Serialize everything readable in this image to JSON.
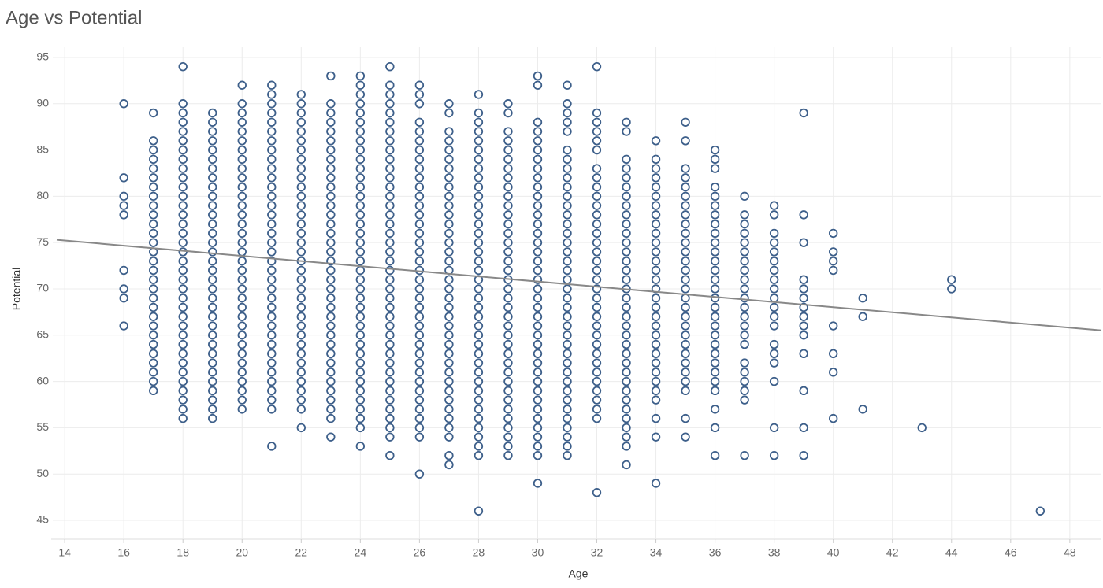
{
  "chart_data": {
    "type": "scatter",
    "title": "Age vs Potential",
    "x_label": "Age",
    "y_label": "Potential",
    "color": "#3d5f8a",
    "trend_color": "#888888",
    "trend": {
      "slope": -0.277,
      "intercept": 79.1
    },
    "xlim": [
      13.73,
      49.07
    ],
    "ylim": [
      42.96,
      96.1
    ],
    "xticks": [
      14,
      16,
      18,
      20,
      22,
      24,
      26,
      28,
      30,
      32,
      34,
      36,
      38,
      40,
      42,
      44,
      46,
      48
    ],
    "yticks": [
      45,
      50,
      55,
      60,
      65,
      70,
      75,
      80,
      85,
      90,
      95
    ],
    "grid": true,
    "groups": [
      {
        "x": 16,
        "values": [
          90,
          82,
          80,
          79,
          78,
          72,
          70,
          69,
          66
        ]
      },
      {
        "x": 17,
        "values": [
          89,
          86,
          85,
          84,
          83,
          82,
          81,
          80,
          79,
          78,
          77,
          76,
          75,
          74,
          73,
          72,
          71,
          70,
          69,
          68,
          67,
          66,
          65,
          64,
          63,
          62,
          61,
          60,
          59
        ]
      },
      {
        "x": 18,
        "values": [
          94,
          90,
          89,
          88,
          87,
          86,
          85,
          84,
          83,
          82,
          81,
          80,
          79,
          78,
          77,
          76,
          75,
          74,
          73,
          72,
          71,
          70,
          69,
          68,
          67,
          66,
          65,
          64,
          63,
          62,
          61,
          60,
          59,
          58,
          57,
          56
        ]
      },
      {
        "x": 19,
        "values": [
          89,
          88,
          87,
          86,
          85,
          84,
          83,
          82,
          81,
          80,
          79,
          78,
          77,
          76,
          75,
          74,
          73,
          72,
          71,
          70,
          69,
          68,
          67,
          66,
          65,
          64,
          63,
          62,
          61,
          60,
          59,
          58,
          57,
          56
        ]
      },
      {
        "x": 20,
        "values": [
          92,
          90,
          89,
          88,
          87,
          86,
          85,
          84,
          83,
          82,
          81,
          80,
          79,
          78,
          77,
          76,
          75,
          74,
          73,
          72,
          71,
          70,
          69,
          68,
          67,
          66,
          65,
          64,
          63,
          62,
          61,
          60,
          59,
          58,
          57
        ]
      },
      {
        "x": 21,
        "values": [
          92,
          91,
          90,
          89,
          88,
          87,
          86,
          85,
          84,
          83,
          82,
          81,
          80,
          79,
          78,
          77,
          76,
          75,
          74,
          73,
          72,
          71,
          70,
          69,
          68,
          67,
          66,
          65,
          64,
          63,
          62,
          61,
          60,
          59,
          58,
          57,
          53
        ]
      },
      {
        "x": 22,
        "values": [
          91,
          90,
          89,
          88,
          87,
          86,
          85,
          84,
          83,
          82,
          81,
          80,
          79,
          78,
          77,
          76,
          75,
          74,
          73,
          72,
          71,
          70,
          69,
          68,
          67,
          66,
          65,
          64,
          63,
          62,
          61,
          60,
          59,
          58,
          57,
          55
        ]
      },
      {
        "x": 23,
        "values": [
          93,
          90,
          89,
          88,
          87,
          86,
          85,
          84,
          83,
          82,
          81,
          80,
          79,
          78,
          77,
          76,
          75,
          74,
          73,
          72,
          71,
          70,
          69,
          68,
          67,
          66,
          65,
          64,
          63,
          62,
          61,
          60,
          59,
          58,
          57,
          56,
          54
        ]
      },
      {
        "x": 24,
        "values": [
          93,
          92,
          91,
          90,
          89,
          88,
          87,
          86,
          85,
          84,
          83,
          82,
          81,
          80,
          79,
          78,
          77,
          76,
          75,
          74,
          73,
          72,
          71,
          70,
          69,
          68,
          67,
          66,
          65,
          64,
          63,
          62,
          61,
          60,
          59,
          58,
          57,
          56,
          55,
          53
        ]
      },
      {
        "x": 25,
        "values": [
          94,
          92,
          91,
          90,
          89,
          88,
          87,
          86,
          85,
          84,
          83,
          82,
          81,
          80,
          79,
          78,
          77,
          76,
          75,
          74,
          73,
          72,
          71,
          70,
          69,
          68,
          67,
          66,
          65,
          64,
          63,
          62,
          61,
          60,
          59,
          58,
          57,
          56,
          55,
          54,
          52
        ]
      },
      {
        "x": 26,
        "values": [
          92,
          91,
          90,
          88,
          87,
          86,
          85,
          84,
          83,
          82,
          81,
          80,
          79,
          78,
          77,
          76,
          75,
          74,
          73,
          72,
          71,
          70,
          69,
          68,
          67,
          66,
          65,
          64,
          63,
          62,
          61,
          60,
          59,
          58,
          57,
          56,
          55,
          54,
          50
        ]
      },
      {
        "x": 27,
        "values": [
          90,
          89,
          87,
          86,
          85,
          84,
          83,
          82,
          81,
          80,
          79,
          78,
          77,
          76,
          75,
          74,
          73,
          72,
          71,
          70,
          69,
          68,
          67,
          66,
          65,
          64,
          63,
          62,
          61,
          60,
          59,
          58,
          57,
          56,
          55,
          54,
          52,
          51
        ]
      },
      {
        "x": 28,
        "values": [
          91,
          89,
          88,
          87,
          86,
          85,
          84,
          83,
          82,
          81,
          80,
          79,
          78,
          77,
          76,
          75,
          74,
          73,
          72,
          71,
          70,
          69,
          68,
          67,
          66,
          65,
          64,
          63,
          62,
          61,
          60,
          59,
          58,
          57,
          56,
          55,
          54,
          53,
          52,
          46
        ]
      },
      {
        "x": 29,
        "values": [
          90,
          89,
          87,
          86,
          85,
          84,
          83,
          82,
          81,
          80,
          79,
          78,
          77,
          76,
          75,
          74,
          73,
          72,
          71,
          70,
          69,
          68,
          67,
          66,
          65,
          64,
          63,
          62,
          61,
          60,
          59,
          58,
          57,
          56,
          55,
          54,
          53,
          52
        ]
      },
      {
        "x": 30,
        "values": [
          93,
          92,
          88,
          87,
          86,
          85,
          84,
          83,
          82,
          81,
          80,
          79,
          78,
          77,
          76,
          75,
          74,
          73,
          72,
          71,
          70,
          69,
          68,
          67,
          66,
          65,
          64,
          63,
          62,
          61,
          60,
          59,
          58,
          57,
          56,
          55,
          54,
          53,
          52,
          49
        ]
      },
      {
        "x": 31,
        "values": [
          92,
          90,
          89,
          88,
          87,
          85,
          84,
          83,
          82,
          81,
          80,
          79,
          78,
          77,
          76,
          75,
          74,
          73,
          72,
          71,
          70,
          69,
          68,
          67,
          66,
          65,
          64,
          63,
          62,
          61,
          60,
          59,
          58,
          57,
          56,
          55,
          54,
          53,
          52
        ]
      },
      {
        "x": 32,
        "values": [
          94,
          89,
          88,
          87,
          86,
          85,
          83,
          82,
          81,
          80,
          79,
          78,
          77,
          76,
          75,
          74,
          73,
          72,
          71,
          70,
          69,
          68,
          67,
          66,
          65,
          64,
          63,
          62,
          61,
          60,
          59,
          58,
          57,
          56,
          48
        ]
      },
      {
        "x": 33,
        "values": [
          88,
          87,
          84,
          83,
          82,
          81,
          80,
          79,
          78,
          77,
          76,
          75,
          74,
          73,
          72,
          71,
          70,
          69,
          68,
          67,
          66,
          65,
          64,
          63,
          62,
          61,
          60,
          59,
          58,
          57,
          56,
          55,
          54,
          53,
          51
        ]
      },
      {
        "x": 34,
        "values": [
          86,
          84,
          83,
          82,
          81,
          80,
          79,
          78,
          77,
          76,
          75,
          74,
          73,
          72,
          71,
          70,
          69,
          68,
          67,
          66,
          65,
          64,
          63,
          62,
          61,
          60,
          59,
          58,
          56,
          54,
          49
        ]
      },
      {
        "x": 35,
        "values": [
          88,
          86,
          83,
          82,
          81,
          80,
          79,
          78,
          77,
          76,
          75,
          74,
          73,
          72,
          71,
          70,
          69,
          68,
          67,
          66,
          65,
          64,
          63,
          62,
          61,
          60,
          59,
          56,
          54
        ]
      },
      {
        "x": 36,
        "values": [
          85,
          84,
          83,
          81,
          80,
          79,
          78,
          77,
          76,
          75,
          74,
          73,
          72,
          71,
          70,
          69,
          68,
          67,
          66,
          65,
          64,
          63,
          62,
          61,
          60,
          59,
          57,
          55,
          52
        ]
      },
      {
        "x": 37,
        "values": [
          80,
          78,
          77,
          76,
          75,
          74,
          73,
          72,
          71,
          70,
          69,
          68,
          67,
          66,
          65,
          64,
          62,
          61,
          60,
          59,
          58,
          52
        ]
      },
      {
        "x": 38,
        "values": [
          79,
          78,
          76,
          75,
          74,
          73,
          72,
          71,
          70,
          69,
          68,
          67,
          66,
          64,
          63,
          62,
          60,
          55,
          52
        ]
      },
      {
        "x": 39,
        "values": [
          89,
          78,
          75,
          71,
          70,
          69,
          68,
          67,
          66,
          65,
          63,
          59,
          55,
          52
        ]
      },
      {
        "x": 40,
        "values": [
          76,
          74,
          73,
          72,
          66,
          63,
          61,
          56
        ]
      },
      {
        "x": 41,
        "values": [
          69,
          67,
          57
        ]
      },
      {
        "x": 43,
        "values": [
          55
        ]
      },
      {
        "x": 44,
        "values": [
          71,
          70
        ]
      },
      {
        "x": 47,
        "values": [
          46
        ]
      }
    ]
  }
}
